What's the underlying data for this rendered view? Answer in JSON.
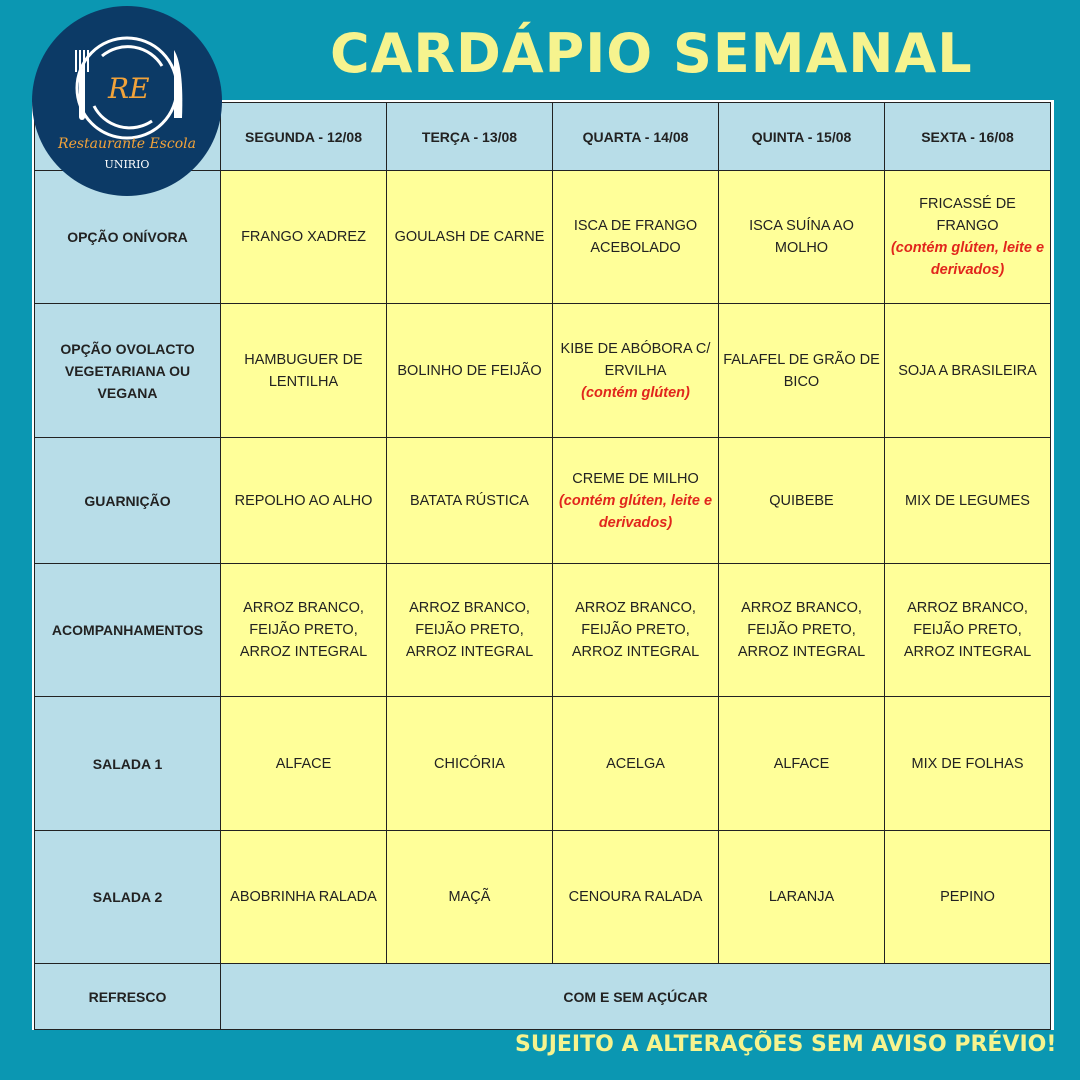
{
  "title": "CARDÁPIO SEMANAL",
  "logo": {
    "initials": "RE",
    "name": "Restaurante Escola",
    "institution": "UNIRIO"
  },
  "colors": {
    "background": "#0b97b2",
    "title": "#f6f38e",
    "label_cell": "#b8dde8",
    "menu_cell": "#ffff99",
    "allergen_note": "#e1261c",
    "logo": "#0c3a66"
  },
  "days": [
    "SEGUNDA - 12/08",
    "TERÇA - 13/08",
    "QUARTA - 14/08",
    "QUINTA - 15/08",
    "SEXTA - 16/08"
  ],
  "rows": [
    {
      "label": "OPÇÃO ONÍVORA",
      "cells": [
        {
          "text": "FRANGO XADREZ"
        },
        {
          "text": "GOULASH DE CARNE"
        },
        {
          "text": "ISCA DE FRANGO ACEBOLADO"
        },
        {
          "text": "ISCA SUÍNA AO MOLHO"
        },
        {
          "text": "FRICASSÉ DE FRANGO",
          "note": "(contém glúten, leite e derivados)"
        }
      ]
    },
    {
      "label": "OPÇÃO OVOLACTO VEGETARIANA OU VEGANA",
      "cells": [
        {
          "text": "HAMBUGUER DE LENTILHA"
        },
        {
          "text": "BOLINHO DE FEIJÃO"
        },
        {
          "text": "KIBE DE ABÓBORA C/ ERVILHA",
          "note": "(contém glúten)"
        },
        {
          "text": "FALAFEL DE GRÃO DE BICO"
        },
        {
          "text": "SOJA A BRASILEIRA"
        }
      ]
    },
    {
      "label": "GUARNIÇÃO",
      "cells": [
        {
          "text": "REPOLHO AO ALHO"
        },
        {
          "text": "BATATA RÚSTICA"
        },
        {
          "text": "CREME DE MILHO",
          "note": "(contém glúten, leite e derivados)"
        },
        {
          "text": "QUIBEBE"
        },
        {
          "text": "MIX DE LEGUMES"
        }
      ]
    },
    {
      "label": "ACOMPANHAMENTOS",
      "cells": [
        {
          "text": "ARROZ BRANCO, FEIJÃO PRETO, ARROZ INTEGRAL"
        },
        {
          "text": "ARROZ BRANCO, FEIJÃO PRETO, ARROZ INTEGRAL"
        },
        {
          "text": "ARROZ BRANCO, FEIJÃO PRETO, ARROZ INTEGRAL"
        },
        {
          "text": "ARROZ BRANCO, FEIJÃO PRETO, ARROZ INTEGRAL"
        },
        {
          "text": "ARROZ BRANCO, FEIJÃO PRETO, ARROZ INTEGRAL"
        }
      ]
    },
    {
      "label": "SALADA 1",
      "cells": [
        {
          "text": "ALFACE"
        },
        {
          "text": "CHICÓRIA"
        },
        {
          "text": "ACELGA"
        },
        {
          "text": "ALFACE"
        },
        {
          "text": "MIX DE FOLHAS"
        }
      ]
    },
    {
      "label": "SALADA 2",
      "cells": [
        {
          "text": "ABOBRINHA RALADA"
        },
        {
          "text": "MAÇÃ"
        },
        {
          "text": "CENOURA RALADA"
        },
        {
          "text": "LARANJA"
        },
        {
          "text": "PEPINO"
        }
      ]
    }
  ],
  "refresco": {
    "label": "REFRESCO",
    "value": "COM E SEM AÇÚCAR"
  },
  "footer": "SUJEITO A ALTERAÇÕES SEM AVISO PRÉVIO!"
}
